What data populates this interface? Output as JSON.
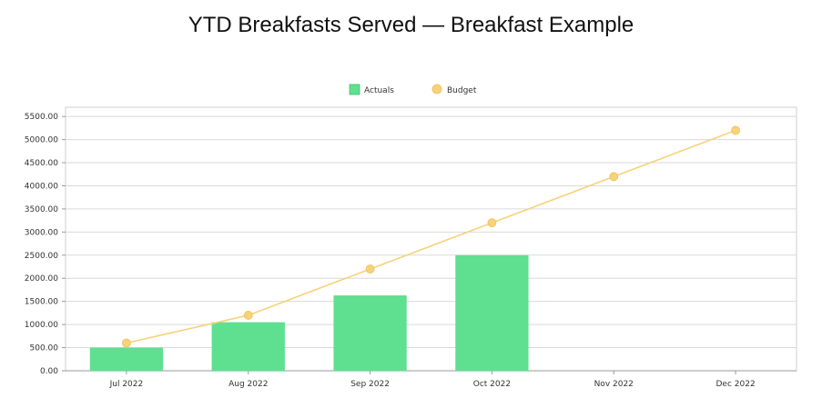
{
  "chart_data": {
    "type": "bar",
    "title": "YTD Breakfasts Served — Breakfast Example",
    "categories": [
      "Jul 2022",
      "Aug 2022",
      "Sep 2022",
      "Oct 2022",
      "Nov 2022",
      "Dec 2022"
    ],
    "series": [
      {
        "name": "Actuals",
        "type": "bar",
        "color": "#5fe090",
        "values": [
          500,
          1050,
          1630,
          2500,
          null,
          null
        ]
      },
      {
        "name": "Budget",
        "type": "line",
        "color": "#f6d27a",
        "values": [
          600,
          1200,
          2200,
          3200,
          4200,
          5200
        ]
      }
    ],
    "yticks": [
      "0.00",
      "500.00",
      "1000.00",
      "1500.00",
      "2000.00",
      "2500.00",
      "3000.00",
      "3500.00",
      "4000.00",
      "4500.00",
      "5000.00",
      "5500.00"
    ],
    "ylim": [
      0,
      5700
    ],
    "grid": true,
    "legend_position": "top-center"
  }
}
